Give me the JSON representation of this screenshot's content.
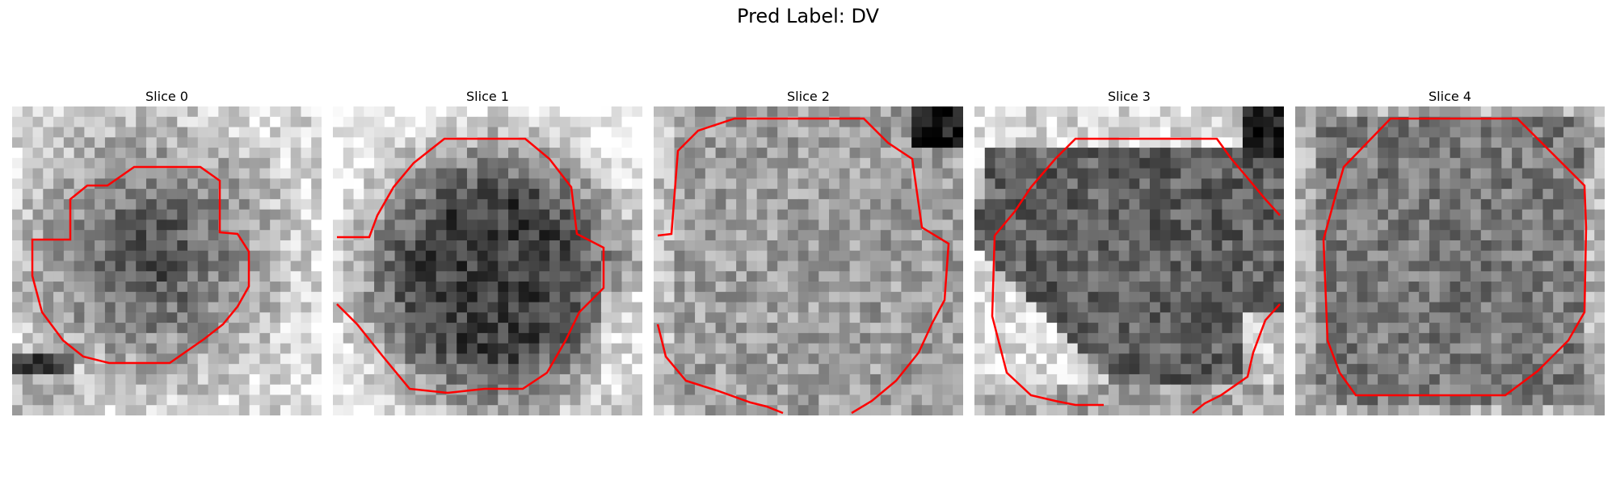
{
  "figure": {
    "title": "Pred Label: DV"
  },
  "panels": [
    {
      "title": "Slice 0"
    },
    {
      "title": "Slice 1"
    },
    {
      "title": "Slice 2"
    },
    {
      "title": "Slice 3"
    },
    {
      "title": "Slice 4"
    }
  ],
  "colors": {
    "contour": "#ff0000",
    "background": "#ffffff"
  }
}
